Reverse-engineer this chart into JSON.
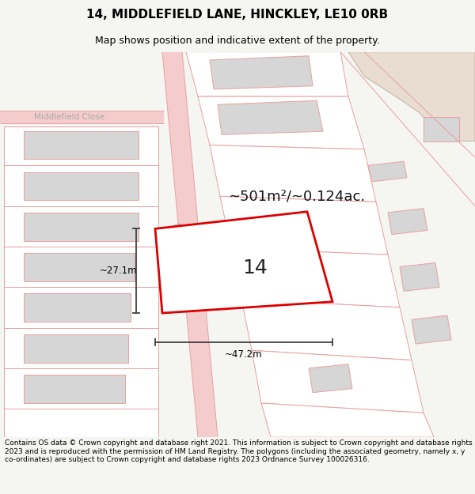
{
  "title": "14, MIDDLEFIELD LANE, HINCKLEY, LE10 0RB",
  "subtitle": "Map shows position and indicative extent of the property.",
  "footer": "Contains OS data © Crown copyright and database right 2021. This information is subject to Crown copyright and database rights 2023 and is reproduced with the permission of HM Land Registry. The polygons (including the associated geometry, namely x, y co-ordinates) are subject to Crown copyright and database rights 2023 Ordnance Survey 100026316.",
  "area_label": "~501m²/~0.124ac.",
  "width_label": "~47.2m",
  "height_label": "~27.1m",
  "number_label": "14",
  "bg_color": "#f5f5f2",
  "map_bg": "#ffffff",
  "road_color": "#f5cccc",
  "parcel_color": "#ffffff",
  "building_color": "#d6d6d6",
  "building_outline": "#e8a0a0",
  "parcel_outline": "#e8a0a0",
  "highlight_color": "#dd0000",
  "highlight_fill": "#ffffff",
  "beige_fill": "#e8ddd0",
  "beige_outline": "#c8b8a8",
  "dim_color": "#333333",
  "street_color": "#aaaaaa",
  "title_fontsize": 11,
  "subtitle_fontsize": 9,
  "footer_fontsize": 6.5,
  "street_name": "Middlefield\nLane",
  "street_close": "Middlefield Close"
}
